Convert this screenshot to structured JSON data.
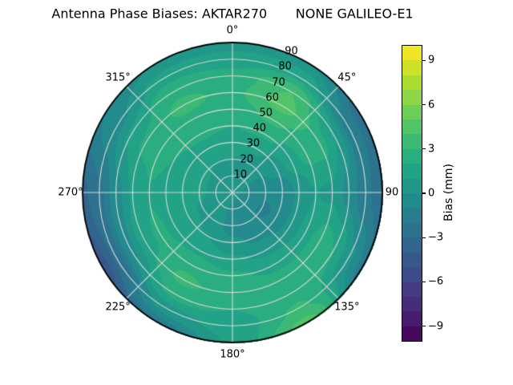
{
  "chart_data": {
    "type": "heatmap",
    "projection": "polar",
    "title": "Antenna Phase Biases: AKTAR270       NONE GALILEO-E1",
    "azimuth_ticks": [
      {
        "angle_deg": 0,
        "label": "0°"
      },
      {
        "angle_deg": 45,
        "label": "45°"
      },
      {
        "angle_deg": 90,
        "label": "90"
      },
      {
        "angle_deg": 135,
        "label": "135°"
      },
      {
        "angle_deg": 180,
        "label": "180°"
      },
      {
        "angle_deg": 225,
        "label": "225°"
      },
      {
        "angle_deg": 270,
        "label": "270°"
      },
      {
        "angle_deg": 315,
        "label": "315°"
      }
    ],
    "radial_ticks": [
      {
        "value": 10,
        "label": "10"
      },
      {
        "value": 20,
        "label": "20"
      },
      {
        "value": 30,
        "label": "30"
      },
      {
        "value": 40,
        "label": "40"
      },
      {
        "value": 50,
        "label": "50"
      },
      {
        "value": 60,
        "label": "60"
      },
      {
        "value": 70,
        "label": "70"
      },
      {
        "value": 80,
        "label": "80"
      },
      {
        "value": 90,
        "label": "90"
      }
    ],
    "radial_label_angle_deg": 22.5,
    "grid": {
      "azimuths_deg": [
        0,
        30,
        60,
        90,
        120,
        150,
        180,
        210,
        240,
        270,
        300,
        330
      ],
      "zeniths_deg": [
        0,
        10,
        20,
        30,
        40,
        50,
        60,
        70,
        80,
        90
      ],
      "bias_mm": [
        [
          0.3,
          0.6,
          1.0,
          1.5,
          2.0,
          2.6,
          2.8,
          2.4,
          1.4,
          0.6
        ],
        [
          0.3,
          0.3,
          0.6,
          1.2,
          2.2,
          3.2,
          4.4,
          4.0,
          1.8,
          0.2
        ],
        [
          0.3,
          0.0,
          0.0,
          0.6,
          1.6,
          2.4,
          2.4,
          1.0,
          -1.4,
          -2.6
        ],
        [
          0.3,
          -0.4,
          -0.9,
          -0.9,
          0.2,
          1.0,
          0.8,
          -0.4,
          -1.8,
          -2.8
        ],
        [
          0.3,
          -0.6,
          -1.1,
          -0.9,
          0.4,
          1.6,
          2.6,
          2.0,
          0.2,
          -1.6
        ],
        [
          0.3,
          -0.5,
          -0.9,
          -0.2,
          0.8,
          1.8,
          2.4,
          2.6,
          3.2,
          4.4
        ],
        [
          0.3,
          -0.4,
          -0.5,
          0.2,
          1.2,
          2.2,
          2.6,
          2.0,
          1.4,
          1.2
        ],
        [
          0.3,
          0.2,
          0.4,
          1.0,
          1.8,
          2.8,
          3.2,
          2.4,
          0.6,
          -1.6
        ],
        [
          0.3,
          0.6,
          0.9,
          1.2,
          1.8,
          2.2,
          1.6,
          -0.2,
          -2.8,
          -4.6
        ],
        [
          0.3,
          0.8,
          1.1,
          1.2,
          1.6,
          1.9,
          1.2,
          -0.4,
          -2.2,
          -3.2
        ],
        [
          0.3,
          0.8,
          1.1,
          1.4,
          2.0,
          2.4,
          2.2,
          1.2,
          -0.3,
          -1.0
        ],
        [
          0.3,
          0.6,
          1.0,
          1.6,
          2.2,
          2.8,
          3.2,
          2.8,
          1.6,
          0.2
        ]
      ]
    },
    "colormap": {
      "name": "viridis",
      "stops": [
        "#440154",
        "#482475",
        "#414487",
        "#355f8d",
        "#2a788e",
        "#21918c",
        "#22a884",
        "#44bf70",
        "#7ad151",
        "#bddf26",
        "#fde725"
      ],
      "vmin": -10,
      "vmax": 10,
      "band_step_mm": 1
    },
    "colorbar": {
      "label": "Bias (mm)",
      "ticks": [
        {
          "value": 9,
          "label": "9"
        },
        {
          "value": 6,
          "label": "6"
        },
        {
          "value": 3,
          "label": "3"
        },
        {
          "value": 0,
          "label": "0"
        },
        {
          "value": -3,
          "label": "−3"
        },
        {
          "value": -6,
          "label": "−6"
        },
        {
          "value": -9,
          "label": "−9"
        }
      ]
    },
    "grid_color": "#d9d9d9",
    "outline_color": "#000000",
    "background": "#ffffff"
  }
}
